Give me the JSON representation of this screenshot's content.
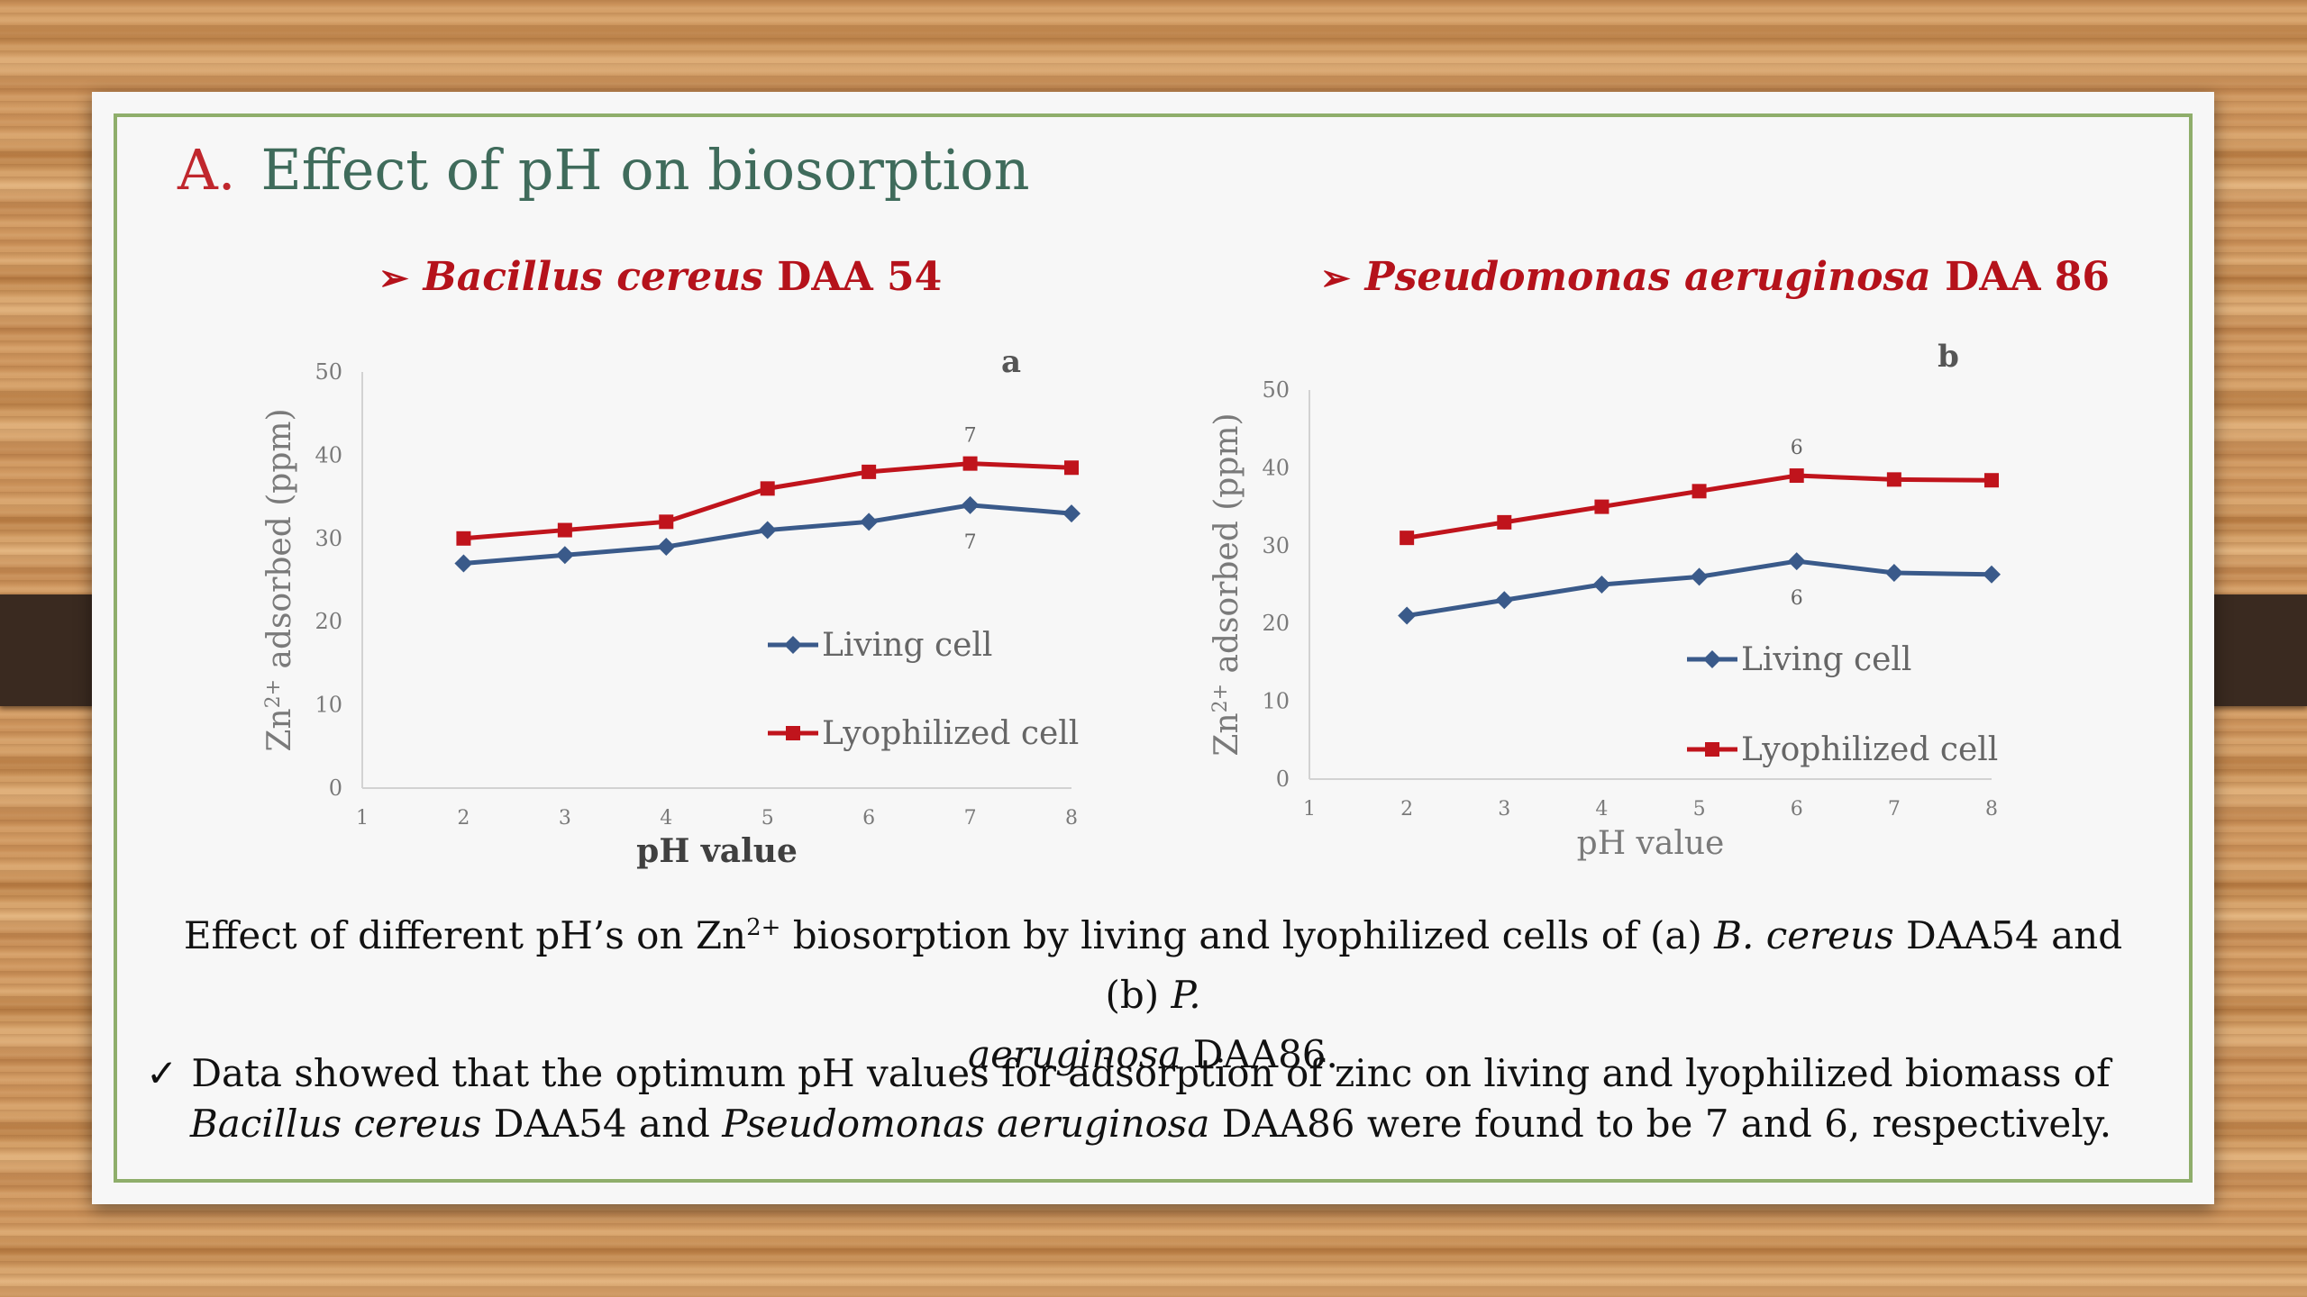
{
  "slide": {
    "title_letter": "A.",
    "title_text": "Effect of pH on biosorption"
  },
  "panels": [
    {
      "arrow": "➢",
      "heading_italic": "Bacillus cereus",
      "heading_plain": " DAA 54",
      "panel_letter": "a"
    },
    {
      "arrow": "➢",
      "heading_italic": "Pseudomonas aeruginosa",
      "heading_plain": " DAA 86",
      "panel_letter": "b"
    }
  ],
  "chart_data": [
    {
      "type": "line",
      "panel_label": "a",
      "xlabel": "pH value",
      "ylabel": "Zn2+ adsorbed (ppm)",
      "xlim": [
        1,
        8
      ],
      "ylim": [
        0,
        50
      ],
      "x_ticks": [
        1,
        2,
        3,
        4,
        5,
        6,
        7,
        8
      ],
      "y_ticks": [
        0,
        10,
        20,
        30,
        40,
        50
      ],
      "x": [
        2,
        3,
        4,
        5,
        6,
        7,
        8
      ],
      "series": [
        {
          "name": "Living cell",
          "color": "#3a5a8a",
          "marker": "diamond",
          "values": [
            27,
            28,
            29,
            31,
            32,
            34,
            33
          ]
        },
        {
          "name": "Lyophilized cell",
          "color": "#c0141c",
          "marker": "square",
          "values": [
            30,
            31,
            32,
            36,
            38,
            39,
            38.5
          ]
        }
      ],
      "annotations": [
        {
          "text": "7",
          "x": 7,
          "series": "Lyophilized cell",
          "position": "above"
        },
        {
          "text": "7",
          "x": 7,
          "series": "Living cell",
          "position": "below"
        }
      ],
      "legend_position": "right",
      "grid": false
    },
    {
      "type": "line",
      "panel_label": "b",
      "xlabel": "pH value",
      "ylabel": "Zn2+ adsorbed (ppm)",
      "xlim": [
        1,
        8
      ],
      "ylim": [
        0,
        50
      ],
      "x_ticks": [
        1,
        2,
        3,
        4,
        5,
        6,
        7,
        8
      ],
      "y_ticks": [
        0,
        10,
        20,
        30,
        40,
        50
      ],
      "x": [
        2,
        3,
        4,
        5,
        6,
        7,
        8
      ],
      "series": [
        {
          "name": "Living cell",
          "color": "#3a5a8a",
          "marker": "diamond",
          "values": [
            21,
            23,
            25,
            26,
            28,
            26.5,
            26.3
          ]
        },
        {
          "name": "Lyophilized cell",
          "color": "#c0141c",
          "marker": "square",
          "values": [
            31,
            33,
            35,
            37,
            39,
            38.5,
            38.4
          ]
        }
      ],
      "annotations": [
        {
          "text": "6",
          "x": 6,
          "series": "Lyophilized cell",
          "position": "above"
        },
        {
          "text": "6",
          "x": 6,
          "series": "Living cell",
          "position": "below"
        }
      ],
      "legend_position": "right",
      "grid": false
    }
  ],
  "caption": {
    "part1": "Effect of different pH’s on Zn",
    "sup": "2+",
    "part2": " biosorption by living and lyophilized cells of (a) ",
    "italic1": "B. cereus",
    "part3": " DAA54 and (b) ",
    "italic2": "P.",
    "italic3": "aeruginosa",
    "part4": " DAA86."
  },
  "bullet": {
    "check": "✓",
    "part1": "Data showed that the optimum pH values for adsorption of zinc on living and lyophilized biomass of  ",
    "italic1": "Bacillus cereus",
    "part2": " DAA54 and ",
    "italic2": "Pseudomonas aeruginosa",
    "part3": " DAA86 were found to be 7 and 6, respectively."
  }
}
